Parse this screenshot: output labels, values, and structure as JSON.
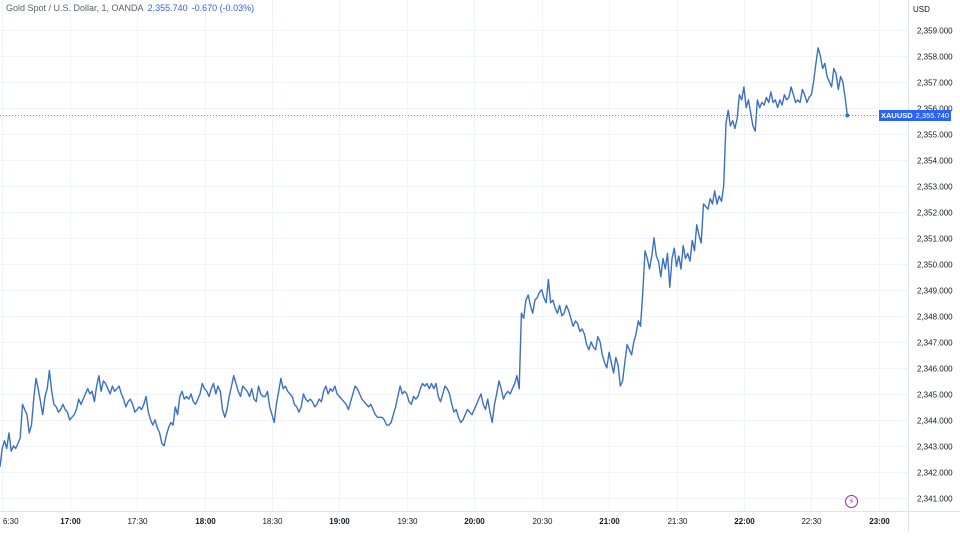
{
  "header": {
    "instrument": "Gold Spot / U.S. Dollar, 1, OANDA",
    "last_price": "2,355.740",
    "change": "-0.670 (-0.03%)"
  },
  "currency": "USD",
  "price_label": {
    "symbol": "XAUUSD",
    "value": "2,355.740"
  },
  "colors": {
    "line": "#3b6fc4",
    "accent": "#2962ff",
    "grid": "#f0f3fa",
    "axis_text": "#131722",
    "event_icon": "#9c27b0"
  },
  "event_icon": "lightning-icon",
  "chart_data": {
    "type": "line",
    "title": "Gold Spot / U.S. Dollar, 1, OANDA",
    "series": [
      {
        "name": "XAUUSD"
      }
    ],
    "x_ticks": [
      "6:30",
      "17:00",
      "17:30",
      "18:00",
      "18:30",
      "19:00",
      "19:30",
      "20:00",
      "20:30",
      "21:00",
      "21:30",
      "22:00",
      "22:30",
      "23:00"
    ],
    "x_tick_minutes": [
      990,
      1020,
      1050,
      1080,
      1110,
      1140,
      1170,
      1200,
      1230,
      1260,
      1290,
      1320,
      1350,
      1380
    ],
    "xlim": [
      989,
      1393
    ],
    "y_ticks": [
      "2,341.000",
      "2,342.000",
      "2,343.000",
      "2,344.000",
      "2,345.000",
      "2,346.000",
      "2,347.000",
      "2,348.000",
      "2,349.000",
      "2,350.000",
      "2,351.000",
      "2,352.000",
      "2,353.000",
      "2,354.000",
      "2,355.000",
      "2,356.000",
      "2,357.000",
      "2,358.000",
      "2,359.000"
    ],
    "ylim": [
      2340.5,
      2359.6
    ],
    "grid": true,
    "points": [
      [
        989,
        2342.2
      ],
      [
        990,
        2342.9
      ],
      [
        991,
        2343.2
      ],
      [
        992,
        2342.9
      ],
      [
        993,
        2343.5
      ],
      [
        994,
        2342.8
      ],
      [
        995,
        2343.0
      ],
      [
        996,
        2342.9
      ],
      [
        997,
        2343.1
      ],
      [
        998,
        2343.3
      ],
      [
        999,
        2344.6
      ],
      [
        1000,
        2344.4
      ],
      [
        1001,
        2344.2
      ],
      [
        1002,
        2343.5
      ],
      [
        1003,
        2343.8
      ],
      [
        1004,
        2344.8
      ],
      [
        1005,
        2345.6
      ],
      [
        1006,
        2345.2
      ],
      [
        1007,
        2344.7
      ],
      [
        1008,
        2344.2
      ],
      [
        1009,
        2344.9
      ],
      [
        1010,
        2345.2
      ],
      [
        1011,
        2345.9
      ],
      [
        1012,
        2345.1
      ],
      [
        1013,
        2344.6
      ],
      [
        1014,
        2344.5
      ],
      [
        1015,
        2344.3
      ],
      [
        1016,
        2344.4
      ],
      [
        1017,
        2344.6
      ],
      [
        1018,
        2344.4
      ],
      [
        1019,
        2344.3
      ],
      [
        1020,
        2344.0
      ],
      [
        1021,
        2344.1
      ],
      [
        1022,
        2344.2
      ],
      [
        1023,
        2344.4
      ],
      [
        1024,
        2344.8
      ],
      [
        1025,
        2344.6
      ],
      [
        1026,
        2344.8
      ],
      [
        1027,
        2345.0
      ],
      [
        1028,
        2345.2
      ],
      [
        1029,
        2345.0
      ],
      [
        1030,
        2345.1
      ],
      [
        1031,
        2344.7
      ],
      [
        1032,
        2345.3
      ],
      [
        1033,
        2345.7
      ],
      [
        1034,
        2345.1
      ],
      [
        1035,
        2345.5
      ],
      [
        1036,
        2345.4
      ],
      [
        1037,
        2345.2
      ],
      [
        1038,
        2345.0
      ],
      [
        1039,
        2345.3
      ],
      [
        1040,
        2345.1
      ],
      [
        1041,
        2345.2
      ],
      [
        1042,
        2345.3
      ],
      [
        1043,
        2345.0
      ],
      [
        1044,
        2344.8
      ],
      [
        1045,
        2344.5
      ],
      [
        1046,
        2344.7
      ],
      [
        1047,
        2344.8
      ],
      [
        1048,
        2344.6
      ],
      [
        1049,
        2344.3
      ],
      [
        1050,
        2344.4
      ],
      [
        1051,
        2344.5
      ],
      [
        1052,
        2344.4
      ],
      [
        1053,
        2344.6
      ],
      [
        1054,
        2344.9
      ],
      [
        1055,
        2344.3
      ],
      [
        1056,
        2344.0
      ],
      [
        1057,
        2343.8
      ],
      [
        1058,
        2344.0
      ],
      [
        1059,
        2343.7
      ],
      [
        1060,
        2343.5
      ],
      [
        1061,
        2343.1
      ],
      [
        1062,
        2343.0
      ],
      [
        1063,
        2343.4
      ],
      [
        1064,
        2343.7
      ],
      [
        1065,
        2343.9
      ],
      [
        1066,
        2343.8
      ],
      [
        1067,
        2344.5
      ],
      [
        1068,
        2344.2
      ],
      [
        1069,
        2344.9
      ],
      [
        1070,
        2345.1
      ],
      [
        1071,
        2344.8
      ],
      [
        1072,
        2344.9
      ],
      [
        1073,
        2344.8
      ],
      [
        1074,
        2345.0
      ],
      [
        1075,
        2344.7
      ],
      [
        1076,
        2344.6
      ],
      [
        1077,
        2344.8
      ],
      [
        1078,
        2345.0
      ],
      [
        1079,
        2345.4
      ],
      [
        1080,
        2345.2
      ],
      [
        1081,
        2345.1
      ],
      [
        1082,
        2344.9
      ],
      [
        1083,
        2345.2
      ],
      [
        1084,
        2345.4
      ],
      [
        1085,
        2345.0
      ],
      [
        1086,
        2345.3
      ],
      [
        1087,
        2345.1
      ],
      [
        1088,
        2344.4
      ],
      [
        1089,
        2344.1
      ],
      [
        1090,
        2344.4
      ],
      [
        1091,
        2344.9
      ],
      [
        1092,
        2345.3
      ],
      [
        1093,
        2345.7
      ],
      [
        1094,
        2345.4
      ],
      [
        1095,
        2345.1
      ],
      [
        1096,
        2344.9
      ],
      [
        1097,
        2345.3
      ],
      [
        1098,
        2345.2
      ],
      [
        1099,
        2345.1
      ],
      [
        1100,
        2344.9
      ],
      [
        1101,
        2345.2
      ],
      [
        1102,
        2344.8
      ],
      [
        1103,
        2344.7
      ],
      [
        1104,
        2345.3
      ],
      [
        1105,
        2345.0
      ],
      [
        1106,
        2344.9
      ],
      [
        1107,
        2344.9
      ],
      [
        1108,
        2345.1
      ],
      [
        1109,
        2344.5
      ],
      [
        1110,
        2344.2
      ],
      [
        1111,
        2343.9
      ],
      [
        1112,
        2344.6
      ],
      [
        1113,
        2345.1
      ],
      [
        1114,
        2345.6
      ],
      [
        1115,
        2345.2
      ],
      [
        1116,
        2345.3
      ],
      [
        1117,
        2345.1
      ],
      [
        1118,
        2345.0
      ],
      [
        1119,
        2344.9
      ],
      [
        1120,
        2344.6
      ],
      [
        1121,
        2344.5
      ],
      [
        1122,
        2344.3
      ],
      [
        1123,
        2344.5
      ],
      [
        1124,
        2345.0
      ],
      [
        1125,
        2344.8
      ],
      [
        1126,
        2344.7
      ],
      [
        1127,
        2344.8
      ],
      [
        1128,
        2344.7
      ],
      [
        1129,
        2344.5
      ],
      [
        1130,
        2344.6
      ],
      [
        1131,
        2344.8
      ],
      [
        1132,
        2344.7
      ],
      [
        1133,
        2345.1
      ],
      [
        1134,
        2345.3
      ],
      [
        1135,
        2345.0
      ],
      [
        1136,
        2345.2
      ],
      [
        1137,
        2345.1
      ],
      [
        1138,
        2345.3
      ],
      [
        1139,
        2345.0
      ],
      [
        1140,
        2344.9
      ],
      [
        1141,
        2344.8
      ],
      [
        1142,
        2344.7
      ],
      [
        1143,
        2344.6
      ],
      [
        1144,
        2344.4
      ],
      [
        1145,
        2344.7
      ],
      [
        1146,
        2345.0
      ],
      [
        1147,
        2345.3
      ],
      [
        1148,
        2345.2
      ],
      [
        1149,
        2345.0
      ],
      [
        1150,
        2344.8
      ],
      [
        1151,
        2344.7
      ],
      [
        1152,
        2344.6
      ],
      [
        1153,
        2344.5
      ],
      [
        1154,
        2344.6
      ],
      [
        1155,
        2344.4
      ],
      [
        1156,
        2344.2
      ],
      [
        1157,
        2344.1
      ],
      [
        1158,
        2344.1
      ],
      [
        1159,
        2344.1
      ],
      [
        1160,
        2344.0
      ],
      [
        1161,
        2343.8
      ],
      [
        1162,
        2343.8
      ],
      [
        1163,
        2343.9
      ],
      [
        1164,
        2344.2
      ],
      [
        1165,
        2344.5
      ],
      [
        1166,
        2344.9
      ],
      [
        1167,
        2345.3
      ],
      [
        1168,
        2345.0
      ],
      [
        1169,
        2345.1
      ],
      [
        1170,
        2345.0
      ],
      [
        1171,
        2344.7
      ],
      [
        1172,
        2344.6
      ],
      [
        1173,
        2344.9
      ],
      [
        1174,
        2344.8
      ],
      [
        1175,
        2344.9
      ],
      [
        1176,
        2345.2
      ],
      [
        1177,
        2345.4
      ],
      [
        1178,
        2345.3
      ],
      [
        1179,
        2345.4
      ],
      [
        1180,
        2345.2
      ],
      [
        1181,
        2345.4
      ],
      [
        1182,
        2345.2
      ],
      [
        1183,
        2345.4
      ],
      [
        1184,
        2344.9
      ],
      [
        1185,
        2344.7
      ],
      [
        1186,
        2345.0
      ],
      [
        1187,
        2345.3
      ],
      [
        1188,
        2345.2
      ],
      [
        1189,
        2345.0
      ],
      [
        1190,
        2344.6
      ],
      [
        1191,
        2344.3
      ],
      [
        1192,
        2344.4
      ],
      [
        1193,
        2344.1
      ],
      [
        1194,
        2343.9
      ],
      [
        1195,
        2344.0
      ],
      [
        1196,
        2344.2
      ],
      [
        1197,
        2344.4
      ],
      [
        1198,
        2344.3
      ],
      [
        1199,
        2344.2
      ],
      [
        1200,
        2344.4
      ],
      [
        1201,
        2344.6
      ],
      [
        1202,
        2344.8
      ],
      [
        1203,
        2345.0
      ],
      [
        1204,
        2344.6
      ],
      [
        1205,
        2344.4
      ],
      [
        1206,
        2344.8
      ],
      [
        1207,
        2344.3
      ],
      [
        1208,
        2343.9
      ],
      [
        1209,
        2344.6
      ],
      [
        1210,
        2345.0
      ],
      [
        1211,
        2345.5
      ],
      [
        1212,
        2345.2
      ],
      [
        1213,
        2344.8
      ],
      [
        1214,
        2345.0
      ],
      [
        1215,
        2345.1
      ],
      [
        1216,
        2345.0
      ],
      [
        1217,
        2345.2
      ],
      [
        1218,
        2345.4
      ],
      [
        1219,
        2345.7
      ],
      [
        1220,
        2345.2
      ],
      [
        1221,
        2348.1
      ],
      [
        1222,
        2347.9
      ],
      [
        1223,
        2348.6
      ],
      [
        1224,
        2348.8
      ],
      [
        1225,
        2348.4
      ],
      [
        1226,
        2348.1
      ],
      [
        1227,
        2348.6
      ],
      [
        1228,
        2348.7
      ],
      [
        1229,
        2348.9
      ],
      [
        1230,
        2349.0
      ],
      [
        1231,
        2348.7
      ],
      [
        1232,
        2348.5
      ],
      [
        1233,
        2349.4
      ],
      [
        1234,
        2348.5
      ],
      [
        1235,
        2348.6
      ],
      [
        1236,
        2348.3
      ],
      [
        1237,
        2348.1
      ],
      [
        1238,
        2348.4
      ],
      [
        1239,
        2348.0
      ],
      [
        1240,
        2348.1
      ],
      [
        1241,
        2348.4
      ],
      [
        1242,
        2348.2
      ],
      [
        1243,
        2347.9
      ],
      [
        1244,
        2347.6
      ],
      [
        1245,
        2347.8
      ],
      [
        1246,
        2347.7
      ],
      [
        1247,
        2347.4
      ],
      [
        1248,
        2347.5
      ],
      [
        1249,
        2347.3
      ],
      [
        1250,
        2346.9
      ],
      [
        1251,
        2346.7
      ],
      [
        1252,
        2347.0
      ],
      [
        1253,
        2346.8
      ],
      [
        1254,
        2346.7
      ],
      [
        1255,
        2347.2
      ],
      [
        1256,
        2347.0
      ],
      [
        1257,
        2346.5
      ],
      [
        1258,
        2346.2
      ],
      [
        1259,
        2346.0
      ],
      [
        1260,
        2346.6
      ],
      [
        1261,
        2346.2
      ],
      [
        1262,
        2345.8
      ],
      [
        1263,
        2346.4
      ],
      [
        1264,
        2346.1
      ],
      [
        1265,
        2345.3
      ],
      [
        1266,
        2345.5
      ],
      [
        1267,
        2346.2
      ],
      [
        1268,
        2346.9
      ],
      [
        1269,
        2346.7
      ],
      [
        1270,
        2346.5
      ],
      [
        1271,
        2347.0
      ],
      [
        1272,
        2347.3
      ],
      [
        1273,
        2347.8
      ],
      [
        1274,
        2347.6
      ],
      [
        1275,
        2348.9
      ],
      [
        1276,
        2350.5
      ],
      [
        1277,
        2350.2
      ],
      [
        1278,
        2349.8
      ],
      [
        1279,
        2350.3
      ],
      [
        1280,
        2351.0
      ],
      [
        1281,
        2350.3
      ],
      [
        1282,
        2350.1
      ],
      [
        1283,
        2349.5
      ],
      [
        1284,
        2350.2
      ],
      [
        1285,
        2349.8
      ],
      [
        1286,
        2350.4
      ],
      [
        1287,
        2349.1
      ],
      [
        1288,
        2350.2
      ],
      [
        1289,
        2350.6
      ],
      [
        1290,
        2349.9
      ],
      [
        1291,
        2350.3
      ],
      [
        1292,
        2349.8
      ],
      [
        1293,
        2350.7
      ],
      [
        1294,
        2350.2
      ],
      [
        1295,
        2350.4
      ],
      [
        1296,
        2350.1
      ],
      [
        1297,
        2350.9
      ],
      [
        1298,
        2350.5
      ],
      [
        1299,
        2351.5
      ],
      [
        1300,
        2351.1
      ],
      [
        1301,
        2350.8
      ],
      [
        1302,
        2352.3
      ],
      [
        1303,
        2352.2
      ],
      [
        1304,
        2352.1
      ],
      [
        1305,
        2352.5
      ],
      [
        1306,
        2352.3
      ],
      [
        1307,
        2352.8
      ],
      [
        1308,
        2352.3
      ],
      [
        1309,
        2352.6
      ],
      [
        1310,
        2352.4
      ],
      [
        1311,
        2353.0
      ],
      [
        1312,
        2355.4
      ],
      [
        1313,
        2355.9
      ],
      [
        1314,
        2355.3
      ],
      [
        1315,
        2355.5
      ],
      [
        1316,
        2355.2
      ],
      [
        1317,
        2355.6
      ],
      [
        1318,
        2356.5
      ],
      [
        1319,
        2356.3
      ],
      [
        1320,
        2356.8
      ],
      [
        1321,
        2356.0
      ],
      [
        1322,
        2356.3
      ],
      [
        1323,
        2355.8
      ],
      [
        1324,
        2355.3
      ],
      [
        1325,
        2355.1
      ],
      [
        1326,
        2356.3
      ],
      [
        1327,
        2356.0
      ],
      [
        1328,
        2356.2
      ],
      [
        1329,
        2356.1
      ],
      [
        1330,
        2356.4
      ],
      [
        1331,
        2356.2
      ],
      [
        1332,
        2356.6
      ],
      [
        1333,
        2356.2
      ],
      [
        1334,
        2356.3
      ],
      [
        1335,
        2356.0
      ],
      [
        1336,
        2356.3
      ],
      [
        1337,
        2356.1
      ],
      [
        1338,
        2356.5
      ],
      [
        1339,
        2356.3
      ],
      [
        1340,
        2356.4
      ],
      [
        1341,
        2356.8
      ],
      [
        1342,
        2356.5
      ],
      [
        1343,
        2356.2
      ],
      [
        1344,
        2356.3
      ],
      [
        1345,
        2356.2
      ],
      [
        1346,
        2356.7
      ],
      [
        1347,
        2356.5
      ],
      [
        1348,
        2356.2
      ],
      [
        1349,
        2356.4
      ],
      [
        1350,
        2356.5
      ],
      [
        1351,
        2357.0
      ],
      [
        1352,
        2357.7
      ],
      [
        1353,
        2358.3
      ],
      [
        1354,
        2358.0
      ],
      [
        1355,
        2357.5
      ],
      [
        1356,
        2357.7
      ],
      [
        1357,
        2357.2
      ],
      [
        1358,
        2357.0
      ],
      [
        1359,
        2356.8
      ],
      [
        1360,
        2357.5
      ],
      [
        1361,
        2357.3
      ],
      [
        1362,
        2356.7
      ],
      [
        1363,
        2357.2
      ],
      [
        1364,
        2357.0
      ],
      [
        1365,
        2356.4
      ],
      [
        1366,
        2355.7
      ]
    ]
  }
}
